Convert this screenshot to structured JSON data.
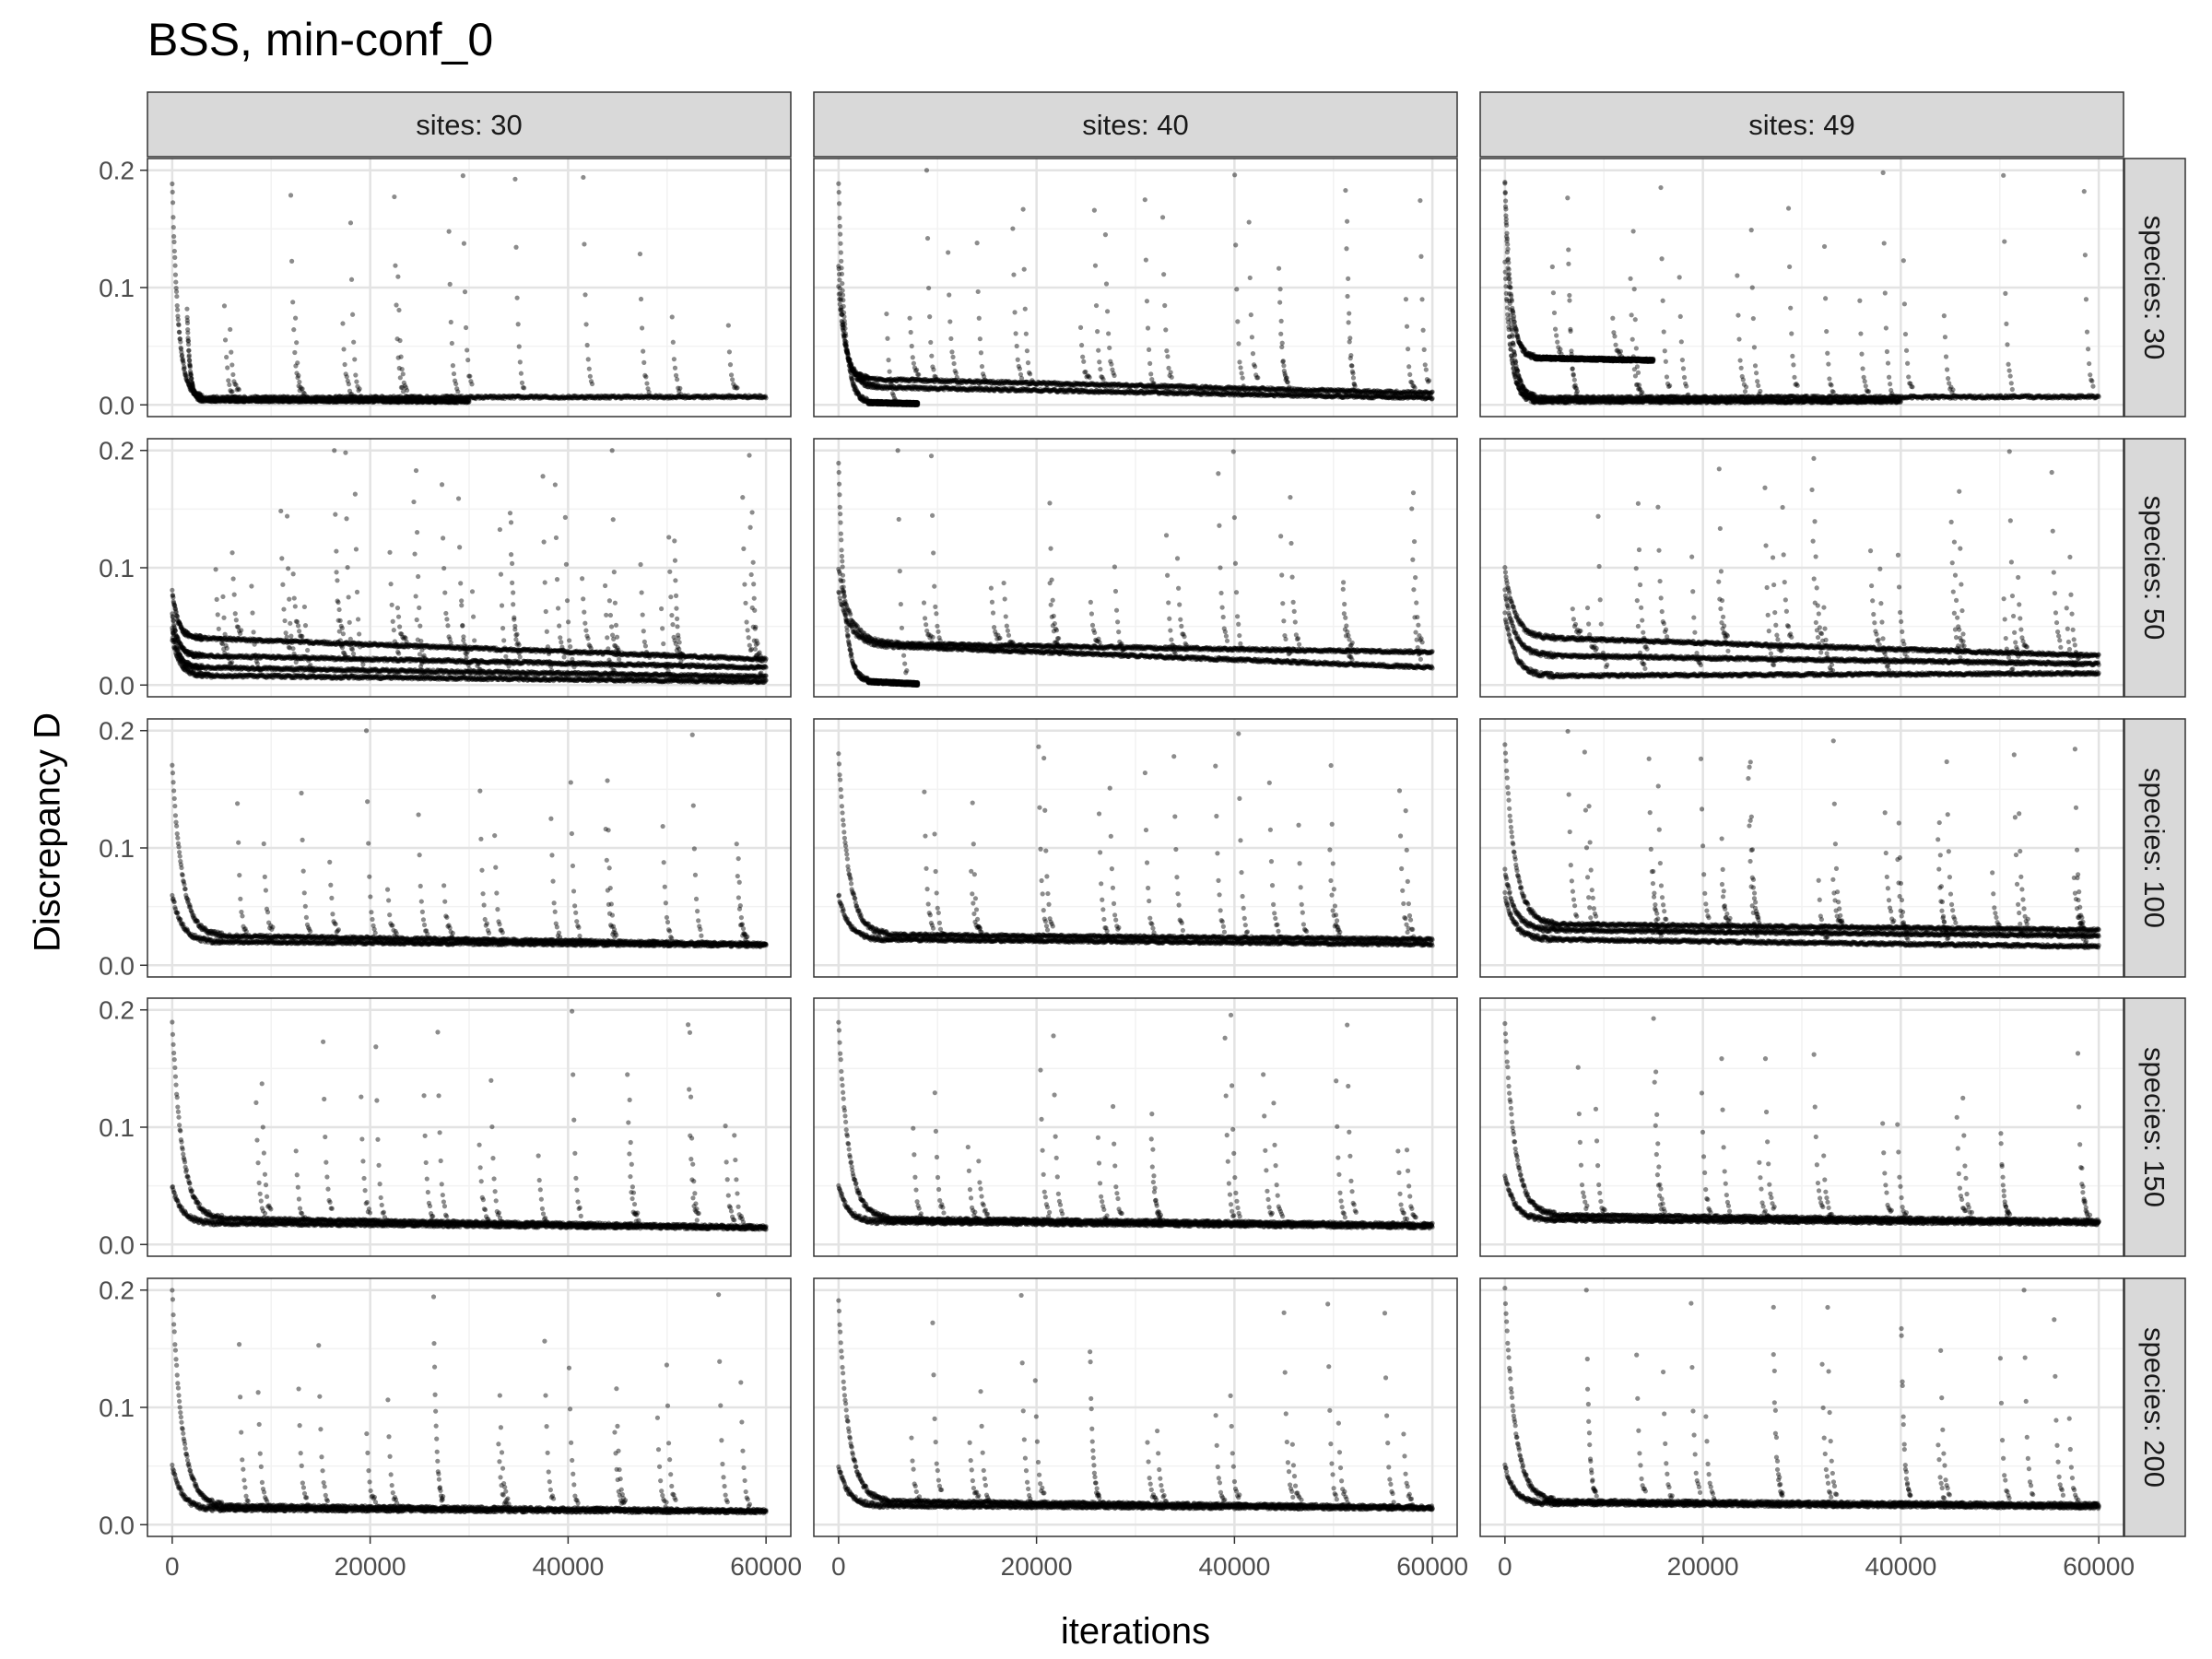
{
  "chart_data": {
    "type": "scatter",
    "title": "BSS, min-conf_0",
    "xlabel": "iterations",
    "ylabel": "Discrepancy D",
    "xlim": [
      -2500,
      62500
    ],
    "ylim": [
      -0.01,
      0.21
    ],
    "x_ticks": [
      0,
      20000,
      40000,
      60000
    ],
    "x_tick_labels": [
      "0",
      "20000",
      "40000",
      "60000"
    ],
    "y_ticks": [
      0.0,
      0.1,
      0.2
    ],
    "y_tick_labels": [
      "0.0",
      "0.1",
      "0.2"
    ],
    "grid": true,
    "point_color": "#000000",
    "point_alpha": 0.45,
    "strip_fill": "#d9d9d9",
    "columns": [
      "sites: 30",
      "sites: 40",
      "sites: 49"
    ],
    "rows": [
      "species: 30",
      "species: 50",
      "species: 100",
      "species: 150",
      "species: 200"
    ],
    "panels": [
      {
        "row": "species: 30",
        "col": "sites: 30",
        "chains": [
          {
            "start": [
              0,
              0.19
            ],
            "plateau": [
              3000,
              0.006
            ],
            "end": [
              60000,
              0.007
            ]
          },
          {
            "start": [
              1500,
              0.08
            ],
            "plateau": [
              3000,
              0.004
            ],
            "end": [
              30000,
              0.003
            ]
          }
        ]
      },
      {
        "row": "species: 30",
        "col": "sites: 40",
        "chains": [
          {
            "start": [
              0,
              0.19
            ],
            "plateau": [
              3000,
              0.002
            ],
            "end": [
              8000,
              0.001
            ]
          },
          {
            "start": [
              0,
              0.12
            ],
            "plateau": [
              3000,
              0.022
            ],
            "end": [
              60000,
              0.01
            ]
          },
          {
            "start": [
              0,
              0.1
            ],
            "plateau": [
              4000,
              0.015
            ],
            "end": [
              60000,
              0.006
            ]
          }
        ]
      },
      {
        "row": "species: 30",
        "col": "sites: 49",
        "chains": [
          {
            "start": [
              0,
              0.19
            ],
            "plateau": [
              3000,
              0.04
            ],
            "end": [
              15000,
              0.038
            ]
          },
          {
            "start": [
              0,
              0.19
            ],
            "plateau": [
              3000,
              0.006
            ],
            "end": [
              60000,
              0.007
            ]
          },
          {
            "start": [
              0,
              0.12
            ],
            "plateau": [
              3000,
              0.003
            ],
            "end": [
              40000,
              0.003
            ]
          }
        ]
      },
      {
        "row": "species: 50",
        "col": "sites: 30",
        "chains": [
          {
            "start": [
              0,
              0.08
            ],
            "plateau": [
              3000,
              0.04
            ],
            "end": [
              60000,
              0.022
            ]
          },
          {
            "start": [
              0,
              0.06
            ],
            "plateau": [
              3000,
              0.025
            ],
            "end": [
              60000,
              0.015
            ]
          },
          {
            "start": [
              0,
              0.05
            ],
            "plateau": [
              3000,
              0.015
            ],
            "end": [
              60000,
              0.007
            ]
          },
          {
            "start": [
              0,
              0.04
            ],
            "plateau": [
              4000,
              0.008
            ],
            "end": [
              60000,
              0.003
            ]
          }
        ]
      },
      {
        "row": "species: 50",
        "col": "sites: 40",
        "chains": [
          {
            "start": [
              0,
              0.19
            ],
            "plateau": [
              3000,
              0.003
            ],
            "end": [
              8000,
              0.001
            ]
          },
          {
            "start": [
              0,
              0.1
            ],
            "plateau": [
              6000,
              0.035
            ],
            "end": [
              60000,
              0.028
            ]
          },
          {
            "start": [
              0,
              0.08
            ],
            "plateau": [
              6000,
              0.033
            ],
            "end": [
              60000,
              0.015
            ]
          }
        ]
      },
      {
        "row": "species: 50",
        "col": "sites: 49",
        "chains": [
          {
            "start": [
              0,
              0.1
            ],
            "plateau": [
              5000,
              0.04
            ],
            "end": [
              60000,
              0.025
            ]
          },
          {
            "start": [
              0,
              0.08
            ],
            "plateau": [
              5000,
              0.025
            ],
            "end": [
              60000,
              0.018
            ]
          },
          {
            "start": [
              0,
              0.06
            ],
            "plateau": [
              5000,
              0.008
            ],
            "end": [
              60000,
              0.01
            ]
          }
        ]
      },
      {
        "row": "species: 100",
        "col": "sites: 30",
        "chains": [
          {
            "start": [
              0,
              0.17
            ],
            "plateau": [
              5000,
              0.025
            ],
            "end": [
              60000,
              0.018
            ]
          },
          {
            "start": [
              0,
              0.06
            ],
            "plateau": [
              5000,
              0.02
            ],
            "end": [
              60000,
              0.017
            ]
          }
        ]
      },
      {
        "row": "species: 100",
        "col": "sites: 40",
        "chains": [
          {
            "start": [
              0,
              0.18
            ],
            "plateau": [
              5000,
              0.026
            ],
            "end": [
              60000,
              0.022
            ]
          },
          {
            "start": [
              0,
              0.06
            ],
            "plateau": [
              5000,
              0.022
            ],
            "end": [
              60000,
              0.018
            ]
          }
        ]
      },
      {
        "row": "species: 100",
        "col": "sites: 49",
        "chains": [
          {
            "start": [
              0,
              0.19
            ],
            "plateau": [
              5000,
              0.035
            ],
            "end": [
              60000,
              0.03
            ]
          },
          {
            "start": [
              0,
              0.08
            ],
            "plateau": [
              5000,
              0.03
            ],
            "end": [
              60000,
              0.025
            ]
          },
          {
            "start": [
              0,
              0.06
            ],
            "plateau": [
              5000,
              0.022
            ],
            "end": [
              60000,
              0.016
            ]
          }
        ]
      },
      {
        "row": "species: 150",
        "col": "sites: 30",
        "chains": [
          {
            "start": [
              0,
              0.19
            ],
            "plateau": [
              5000,
              0.022
            ],
            "end": [
              60000,
              0.015
            ]
          },
          {
            "start": [
              0,
              0.05
            ],
            "plateau": [
              5000,
              0.018
            ],
            "end": [
              60000,
              0.014
            ]
          }
        ]
      },
      {
        "row": "species: 150",
        "col": "sites: 40",
        "chains": [
          {
            "start": [
              0,
              0.19
            ],
            "plateau": [
              5000,
              0.022
            ],
            "end": [
              60000,
              0.017
            ]
          },
          {
            "start": [
              0,
              0.05
            ],
            "plateau": [
              5000,
              0.019
            ],
            "end": [
              60000,
              0.015
            ]
          }
        ]
      },
      {
        "row": "species: 150",
        "col": "sites: 49",
        "chains": [
          {
            "start": [
              0,
              0.19
            ],
            "plateau": [
              5000,
              0.025
            ],
            "end": [
              60000,
              0.02
            ]
          },
          {
            "start": [
              0,
              0.06
            ],
            "plateau": [
              5000,
              0.021
            ],
            "end": [
              60000,
              0.018
            ]
          }
        ]
      },
      {
        "row": "species: 200",
        "col": "sites: 30",
        "chains": [
          {
            "start": [
              0,
              0.2
            ],
            "plateau": [
              5000,
              0.016
            ],
            "end": [
              60000,
              0.012
            ]
          },
          {
            "start": [
              0,
              0.05
            ],
            "plateau": [
              5000,
              0.013
            ],
            "end": [
              60000,
              0.011
            ]
          }
        ]
      },
      {
        "row": "species: 200",
        "col": "sites: 40",
        "chains": [
          {
            "start": [
              0,
              0.19
            ],
            "plateau": [
              5000,
              0.02
            ],
            "end": [
              60000,
              0.015
            ]
          },
          {
            "start": [
              0,
              0.05
            ],
            "plateau": [
              5000,
              0.016
            ],
            "end": [
              60000,
              0.014
            ]
          }
        ]
      },
      {
        "row": "species: 200",
        "col": "sites: 49",
        "chains": [
          {
            "start": [
              0,
              0.2
            ],
            "plateau": [
              5000,
              0.02
            ],
            "end": [
              60000,
              0.017
            ]
          },
          {
            "start": [
              0,
              0.05
            ],
            "plateau": [
              5000,
              0.018
            ],
            "end": [
              60000,
              0.015
            ]
          }
        ]
      }
    ]
  }
}
